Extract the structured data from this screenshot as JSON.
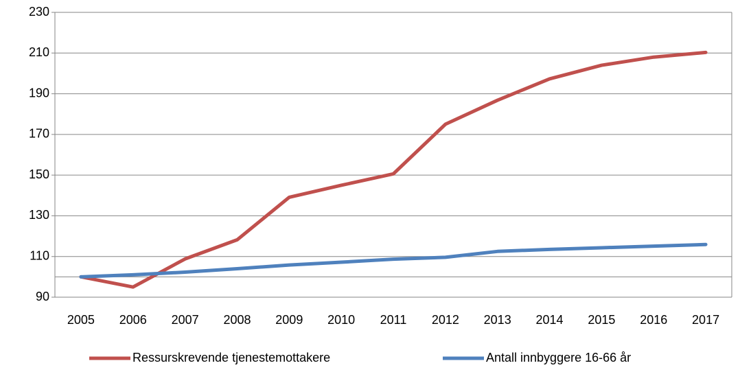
{
  "chart_data": {
    "type": "line",
    "categories": [
      "2005",
      "2006",
      "2007",
      "2008",
      "2009",
      "2010",
      "2011",
      "2012",
      "2013",
      "2014",
      "2015",
      "2016",
      "2017"
    ],
    "series": [
      {
        "name": "Ressurskrevende tjenestemottakere",
        "color": "#c0504d",
        "values": [
          100,
          95,
          108.8,
          118.2,
          139.1,
          145,
          150.6,
          175,
          186.8,
          197.3,
          204,
          208,
          210.3
        ]
      },
      {
        "name": "Antall innbyggere 16-66 år",
        "color": "#4f81bd",
        "values": [
          100,
          101,
          102.3,
          104,
          105.8,
          107.2,
          108.7,
          109.6,
          112.5,
          113.5,
          114.3,
          115.1,
          115.9
        ]
      }
    ],
    "ylim": [
      90,
      230
    ],
    "yticks": [
      90,
      110,
      130,
      150,
      170,
      190,
      210,
      230
    ],
    "x_axis_at": 100,
    "grid": true,
    "legend": "bottom"
  }
}
